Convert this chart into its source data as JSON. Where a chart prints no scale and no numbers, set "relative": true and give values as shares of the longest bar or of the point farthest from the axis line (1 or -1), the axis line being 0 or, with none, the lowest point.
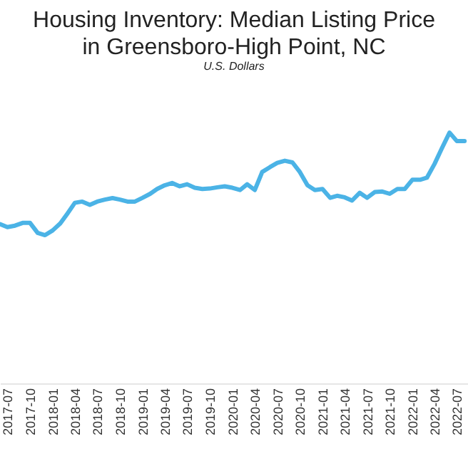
{
  "chart_data": {
    "type": "line",
    "title": [
      "Housing Inventory: Median Listing Price",
      "in Greensboro-High Point, NC"
    ],
    "subtitle": "U.S. Dollars",
    "relative": true,
    "x": [
      "2017-06",
      "2017-07",
      "2017-08",
      "2017-09",
      "2017-10",
      "2017-11",
      "2017-12",
      "2018-01",
      "2018-02",
      "2018-03",
      "2018-04",
      "2018-05",
      "2018-06",
      "2018-07",
      "2018-08",
      "2018-09",
      "2018-10",
      "2018-11",
      "2018-12",
      "2019-01",
      "2019-02",
      "2019-03",
      "2019-04",
      "2019-05",
      "2019-06",
      "2019-07",
      "2019-08",
      "2019-09",
      "2019-10",
      "2019-11",
      "2019-12",
      "2020-01",
      "2020-02",
      "2020-03",
      "2020-04",
      "2020-05",
      "2020-06",
      "2020-07",
      "2020-08",
      "2020-09",
      "2020-10",
      "2020-11",
      "2020-12",
      "2021-01",
      "2021-02",
      "2021-03",
      "2021-04",
      "2021-05",
      "2021-06",
      "2021-07",
      "2021-08",
      "2021-09",
      "2021-10",
      "2021-11",
      "2021-12",
      "2022-01",
      "2022-02",
      "2022-03",
      "2022-04",
      "2022-05",
      "2022-06",
      "2022-07",
      "2022-08"
    ],
    "series": [
      {
        "color": "#4bb3e6",
        "values": [
          0.635,
          0.623,
          0.629,
          0.64,
          0.64,
          0.6,
          0.591,
          0.61,
          0.638,
          0.676,
          0.72,
          0.725,
          0.712,
          0.725,
          0.733,
          0.739,
          0.733,
          0.725,
          0.725,
          0.74,
          0.756,
          0.775,
          0.79,
          0.799,
          0.786,
          0.794,
          0.78,
          0.775,
          0.777,
          0.782,
          0.786,
          0.78,
          0.771,
          0.794,
          0.771,
          0.843,
          0.862,
          0.879,
          0.888,
          0.881,
          0.843,
          0.79,
          0.771,
          0.775,
          0.74,
          0.748,
          0.742,
          0.729,
          0.76,
          0.74,
          0.763,
          0.765,
          0.756,
          0.775,
          0.775,
          0.812,
          0.812,
          0.82,
          0.875,
          0.938,
          1.0,
          0.966,
          0.966
        ]
      }
    ],
    "xlim": [
      "2017-06",
      "2022-08-15"
    ],
    "xticks": [
      {
        "value": "2017-07",
        "label": "2017-07"
      },
      {
        "value": "2017-10",
        "label": "2017-10"
      },
      {
        "value": "2018-01",
        "label": "2018-01"
      },
      {
        "value": "2018-04",
        "label": "2018-04"
      },
      {
        "value": "2018-07",
        "label": "2018-07"
      },
      {
        "value": "2018-10",
        "label": "2018-10"
      },
      {
        "value": "2019-01",
        "label": "2019-01"
      },
      {
        "value": "2019-04",
        "label": "2019-04"
      },
      {
        "value": "2019-07",
        "label": "2019-07"
      },
      {
        "value": "2019-10",
        "label": "2019-10"
      },
      {
        "value": "2020-01",
        "label": "2020-01"
      },
      {
        "value": "2020-04",
        "label": "2020-04"
      },
      {
        "value": "2020-07",
        "label": "2020-07"
      },
      {
        "value": "2020-10",
        "label": "2020-10"
      },
      {
        "value": "2021-01",
        "label": "2021-01"
      },
      {
        "value": "2021-04",
        "label": "2021-04"
      },
      {
        "value": "2021-07",
        "label": "2021-07"
      },
      {
        "value": "2021-10",
        "label": "2021-10"
      },
      {
        "value": "2022-01",
        "label": "2022-01"
      },
      {
        "value": "2022-04",
        "label": "2022-04"
      },
      {
        "value": "2022-07",
        "label": "2022-07"
      }
    ],
    "grid": false,
    "line_style": "solid",
    "marker": "none"
  }
}
